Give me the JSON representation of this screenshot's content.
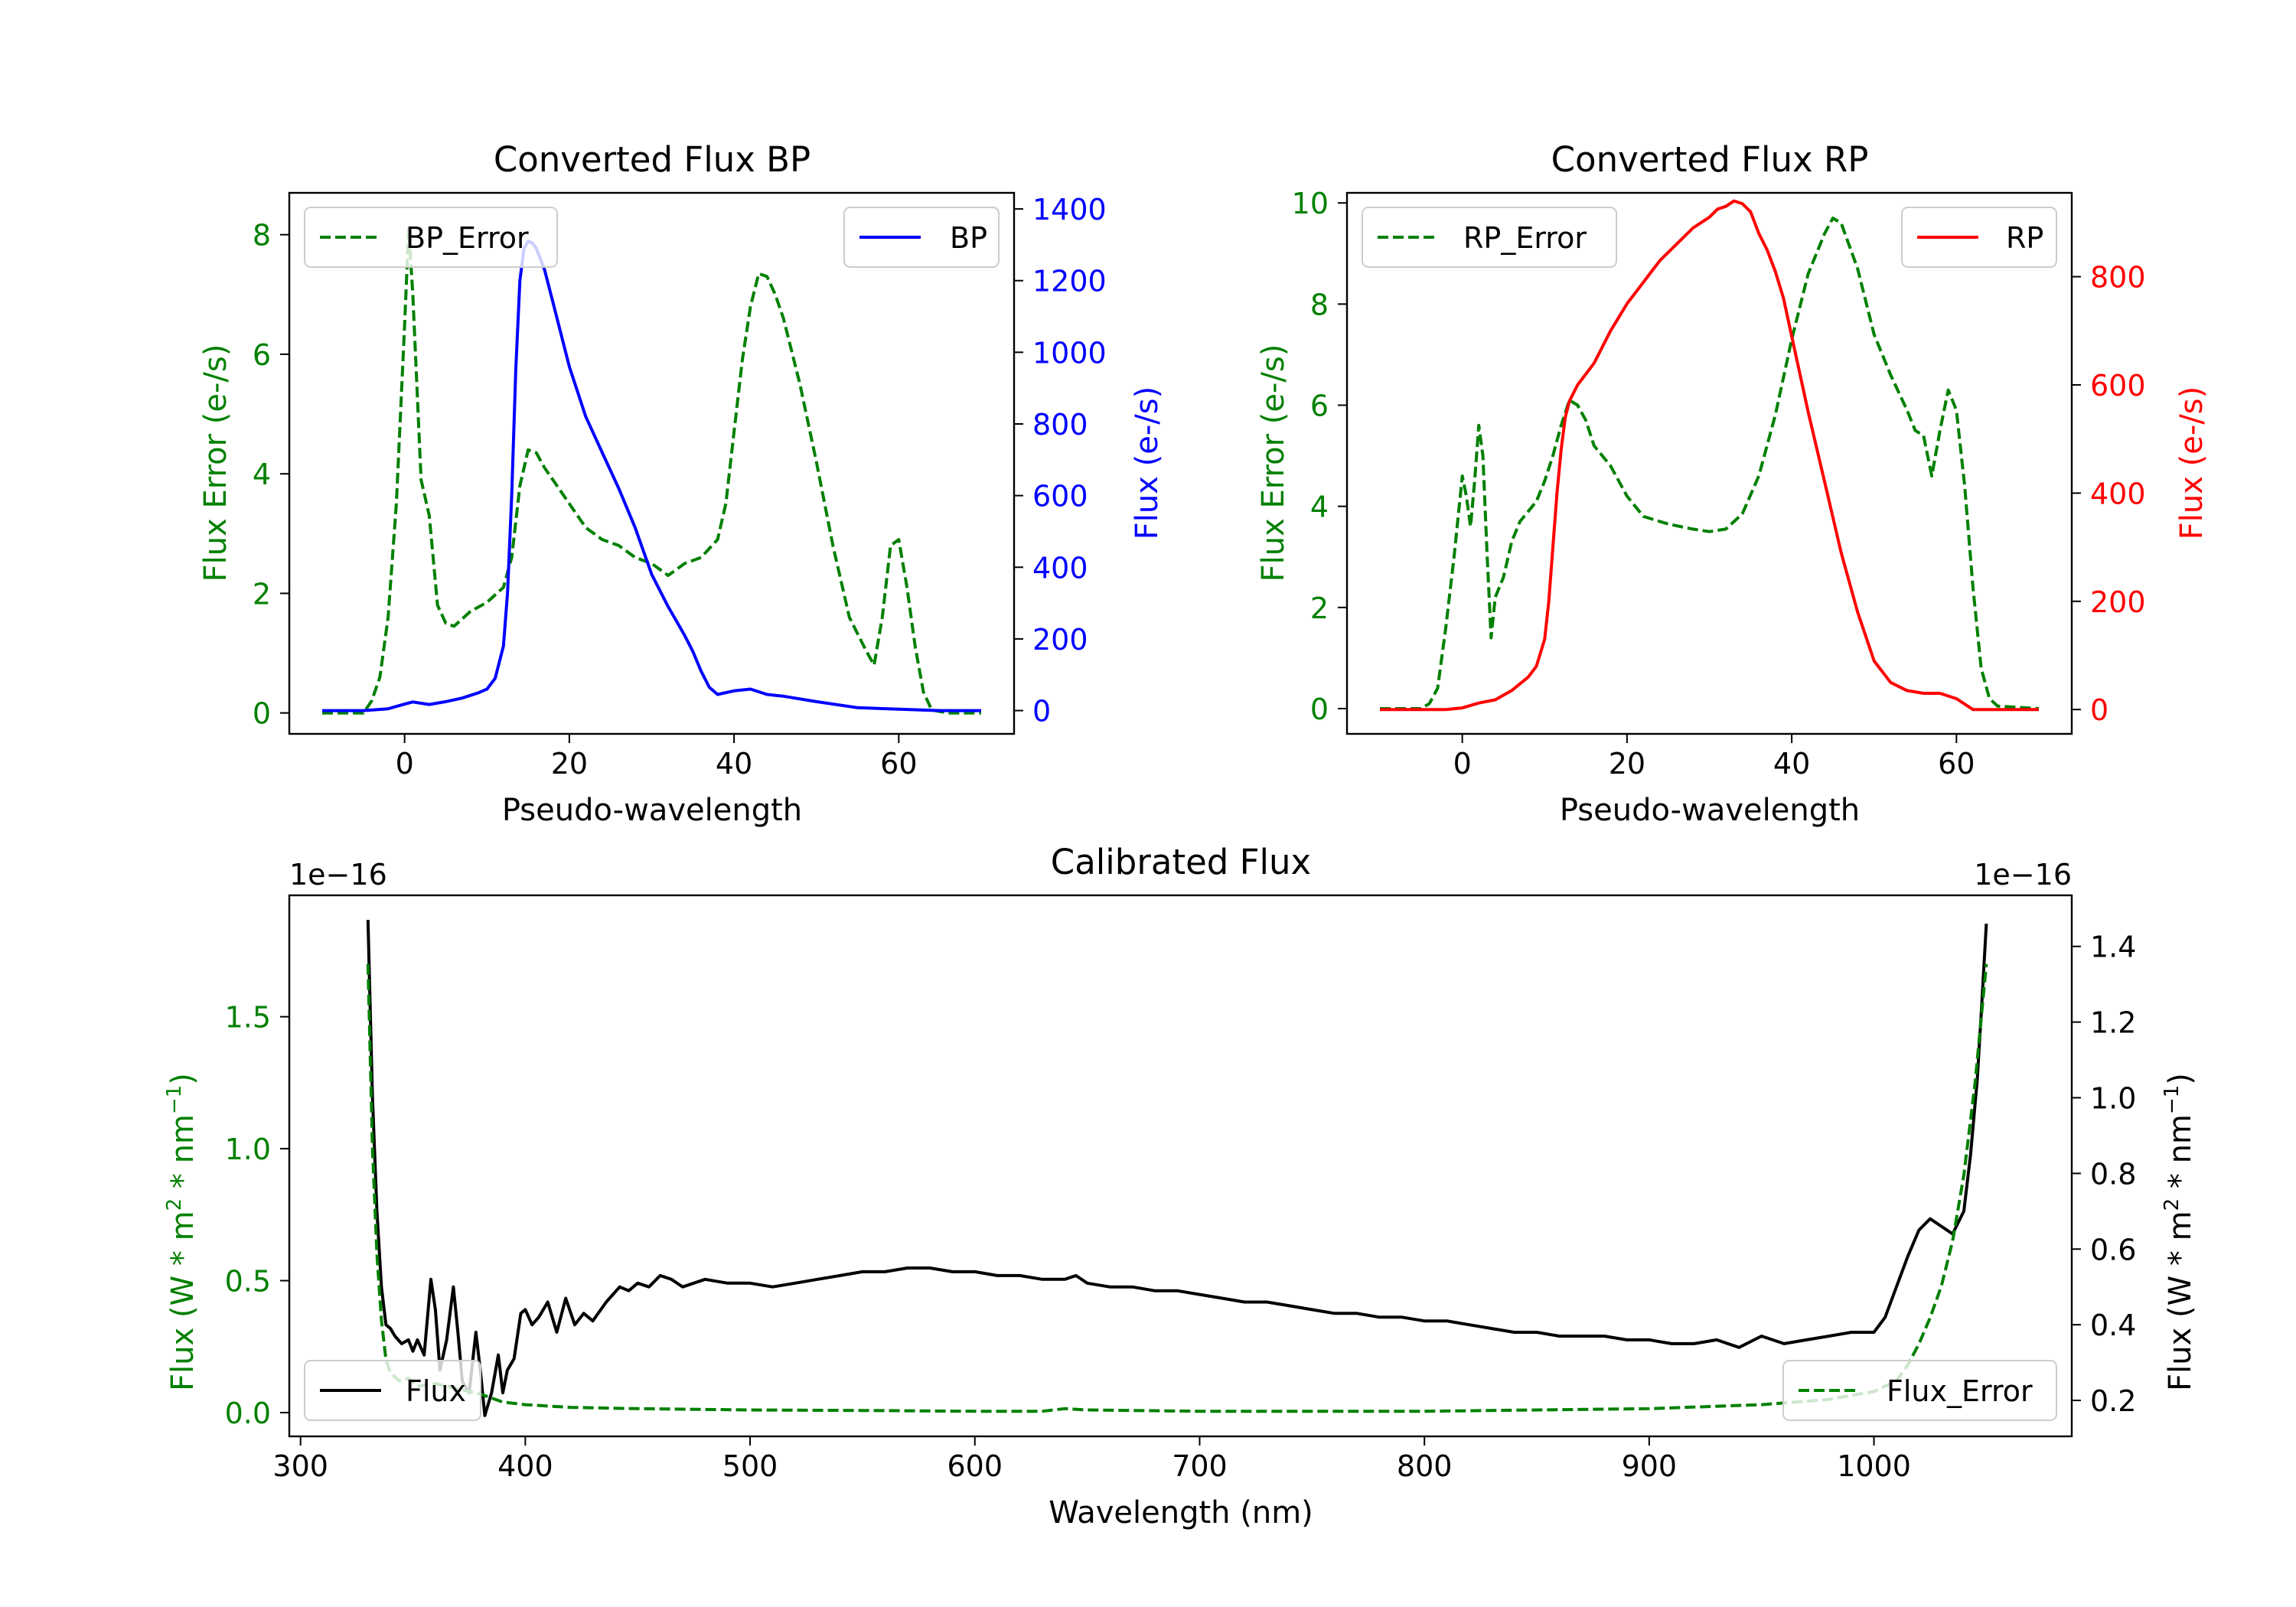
{
  "colors": {
    "green": "#008000",
    "blue": "#0000ff",
    "red": "#ff0000",
    "black": "#000000"
  },
  "chart_data": [
    {
      "id": "bp",
      "type": "line",
      "title": "Converted Flux BP",
      "xlabel": "Pseudo-wavelength",
      "xlim": [
        -14,
        74
      ],
      "xticks": [
        0,
        20,
        40,
        60
      ],
      "left": {
        "ylabel": "Flux Error (e-/s)",
        "color": "#008000",
        "ylim": [
          -0.35,
          8.7
        ],
        "ticks": [
          0,
          2,
          4,
          6,
          8
        ],
        "scale_label": ""
      },
      "right": {
        "ylabel": "Flux (e-/s)",
        "color": "#0000ff",
        "ylim": [
          -65,
          1445
        ],
        "ticks": [
          0,
          200,
          400,
          600,
          800,
          1000,
          1200,
          1400
        ],
        "scale_label": ""
      },
      "legend_left": "top-left",
      "legend_right": "top-right",
      "series": [
        {
          "name": "BP_Error",
          "axis": "left",
          "style": "dashed",
          "color": "#008000",
          "x": [
            -10,
            -5,
            -4,
            -3,
            -2,
            -1,
            0,
            0.5,
            1,
            2,
            3,
            4,
            5,
            6,
            8,
            10,
            12,
            13,
            14,
            15,
            16,
            17,
            18,
            20,
            22,
            24,
            26,
            28,
            30,
            32,
            34,
            36,
            38,
            39,
            40,
            41,
            42,
            43,
            44,
            45,
            46,
            48,
            50,
            52,
            54,
            56,
            57,
            58,
            59,
            60,
            61,
            62,
            63,
            64,
            66,
            68,
            70
          ],
          "y": [
            0.0,
            0.0,
            0.2,
            0.6,
            1.6,
            3.5,
            6.5,
            8.1,
            7.0,
            3.9,
            3.3,
            1.8,
            1.5,
            1.45,
            1.7,
            1.85,
            2.1,
            2.6,
            3.8,
            4.4,
            4.35,
            4.1,
            3.9,
            3.5,
            3.1,
            2.9,
            2.8,
            2.6,
            2.5,
            2.3,
            2.5,
            2.6,
            2.9,
            3.5,
            4.7,
            5.9,
            6.8,
            7.35,
            7.3,
            7.0,
            6.6,
            5.5,
            4.2,
            2.8,
            1.6,
            1.05,
            0.8,
            1.6,
            2.8,
            2.9,
            2.1,
            1.1,
            0.35,
            0.05,
            0.0,
            0.0,
            0.0
          ]
        },
        {
          "name": "BP",
          "axis": "right",
          "style": "solid",
          "color": "#0000ff",
          "x": [
            -10,
            -5,
            -2,
            0,
            1,
            3,
            5,
            7,
            9,
            10,
            11,
            12,
            12.5,
            13,
            13.5,
            14,
            14.5,
            15,
            15.5,
            16,
            17,
            18,
            20,
            22,
            24,
            26,
            28,
            30,
            32,
            33,
            34,
            35,
            36,
            37,
            38,
            40,
            42,
            44,
            46,
            50,
            55,
            60,
            65,
            70
          ],
          "y": [
            0,
            0,
            5,
            18,
            24,
            17,
            25,
            35,
            50,
            60,
            90,
            180,
            330,
            600,
            950,
            1200,
            1290,
            1310,
            1305,
            1290,
            1230,
            1140,
            960,
            820,
            720,
            620,
            510,
            380,
            290,
            250,
            210,
            165,
            110,
            65,
            45,
            55,
            60,
            45,
            40,
            25,
            8,
            4,
            0,
            0
          ]
        }
      ]
    },
    {
      "id": "rp",
      "type": "line",
      "title": "Converted Flux RP",
      "xlabel": "Pseudo-wavelength",
      "xlim": [
        -14,
        74
      ],
      "xticks": [
        0,
        20,
        40,
        60
      ],
      "left": {
        "ylabel": "Flux Error (e-/s)",
        "color": "#008000",
        "ylim": [
          -0.5,
          10.2
        ],
        "ticks": [
          0,
          2,
          4,
          6,
          8,
          10
        ],
        "scale_label": ""
      },
      "right": {
        "ylabel": "Flux (e-/s)",
        "color": "#ff0000",
        "ylim": [
          -45,
          955
        ],
        "ticks": [
          0,
          200,
          400,
          600,
          800
        ],
        "scale_label": ""
      },
      "legend_left": "top-left",
      "legend_right": "top-right",
      "series": [
        {
          "name": "RP_Error",
          "axis": "left",
          "style": "dashed",
          "color": "#008000",
          "x": [
            -10,
            -5,
            -4,
            -3,
            -2,
            -1,
            0,
            0.5,
            1,
            1.5,
            2,
            2.5,
            3,
            3.5,
            4,
            5,
            6,
            7,
            8,
            9,
            10,
            11,
            12,
            13,
            14,
            15,
            16,
            18,
            20,
            22,
            25,
            28,
            30,
            32,
            34,
            36,
            38,
            40,
            42,
            44,
            45,
            46,
            48,
            50,
            52,
            54,
            55,
            56,
            57,
            58,
            59,
            60,
            61,
            62,
            63,
            64,
            65,
            70
          ],
          "y": [
            0.0,
            0.0,
            0.1,
            0.4,
            1.6,
            3.0,
            4.6,
            4.2,
            3.6,
            4.5,
            5.6,
            5.0,
            3.1,
            1.4,
            2.2,
            2.6,
            3.3,
            3.7,
            3.9,
            4.1,
            4.5,
            5.0,
            5.6,
            6.1,
            6.0,
            5.7,
            5.2,
            4.8,
            4.2,
            3.8,
            3.65,
            3.55,
            3.5,
            3.55,
            3.85,
            4.6,
            5.8,
            7.3,
            8.6,
            9.4,
            9.7,
            9.6,
            8.7,
            7.4,
            6.6,
            5.9,
            5.5,
            5.4,
            4.6,
            5.5,
            6.3,
            5.9,
            4.4,
            2.4,
            0.8,
            0.2,
            0.05,
            0.0
          ]
        },
        {
          "name": "RP",
          "axis": "right",
          "style": "solid",
          "color": "#ff0000",
          "x": [
            -10,
            -5,
            -2,
            0,
            2,
            4,
            6,
            8,
            9,
            10,
            10.5,
            11,
            11.5,
            12,
            12.5,
            13,
            14,
            16,
            18,
            20,
            22,
            24,
            26,
            28,
            30,
            31,
            32,
            33,
            34,
            35,
            36,
            37,
            38,
            39,
            40,
            42,
            44,
            46,
            48,
            50,
            52,
            54,
            56,
            58,
            60,
            62,
            64,
            70
          ],
          "y": [
            0,
            0,
            0,
            3,
            12,
            18,
            35,
            60,
            80,
            130,
            200,
            300,
            400,
            480,
            540,
            570,
            600,
            640,
            700,
            750,
            790,
            830,
            860,
            890,
            910,
            925,
            930,
            940,
            935,
            920,
            880,
            850,
            810,
            760,
            690,
            550,
            420,
            290,
            180,
            90,
            50,
            35,
            30,
            30,
            20,
            0,
            0,
            0
          ]
        }
      ]
    },
    {
      "id": "calibrated",
      "type": "line",
      "title": "Calibrated Flux",
      "xlabel": "Wavelength (nm)",
      "xlim": [
        295,
        1088
      ],
      "xticks": [
        300,
        400,
        500,
        600,
        700,
        800,
        900,
        1000
      ],
      "left": {
        "ylabel": "Flux (W * m$^{2}$ * nm$^{-1}$)",
        "ylabel_parts": [
          "Flux (W * m",
          "2",
          " * nm",
          "−1",
          ")"
        ],
        "color": "#008000",
        "ylim": [
          -0.09,
          1.96
        ],
        "ticks": [
          0.0,
          0.5,
          1.0,
          1.5
        ],
        "tick_labels": [
          "0.0",
          "0.5",
          "1.0",
          "1.5"
        ],
        "scale_label": "1e−16"
      },
      "right": {
        "ylabel": "Flux (W * m$^{2}$ * nm$^{-1}$)",
        "ylabel_parts": [
          "Flux (W * m",
          "2",
          " * nm",
          "−1",
          ")"
        ],
        "color": "#000000",
        "ylim": [
          0.105,
          1.535
        ],
        "ticks": [
          0.2,
          0.4,
          0.6,
          0.8,
          1.0,
          1.2,
          1.4
        ],
        "tick_labels": [
          "0.2",
          "0.4",
          "0.6",
          "0.8",
          "1.0",
          "1.2",
          "1.4"
        ],
        "scale_label": "1e−16"
      },
      "legend_left": "bottom-left",
      "legend_right": "bottom-right",
      "series": [
        {
          "name": "Flux",
          "axis": "right",
          "style": "solid",
          "color": "#000000",
          "x": [
            330,
            332,
            334,
            336,
            338,
            340,
            342,
            345,
            348,
            350,
            352,
            355,
            358,
            360,
            362,
            365,
            368,
            370,
            372,
            375,
            378,
            380,
            382,
            385,
            388,
            390,
            392,
            395,
            398,
            400,
            403,
            406,
            410,
            414,
            418,
            422,
            426,
            430,
            436,
            442,
            446,
            450,
            455,
            460,
            465,
            470,
            480,
            490,
            500,
            510,
            520,
            530,
            540,
            550,
            560,
            570,
            580,
            590,
            600,
            610,
            620,
            630,
            640,
            645,
            650,
            660,
            670,
            680,
            690,
            700,
            710,
            720,
            730,
            740,
            750,
            760,
            770,
            780,
            790,
            800,
            810,
            820,
            830,
            840,
            850,
            860,
            870,
            880,
            890,
            900,
            910,
            920,
            930,
            940,
            950,
            960,
            970,
            980,
            990,
            1000,
            1005,
            1010,
            1015,
            1020,
            1025,
            1030,
            1035,
            1040,
            1043,
            1046,
            1048,
            1050
          ],
          "y": [
            1.47,
            1.0,
            0.7,
            0.5,
            0.4,
            0.39,
            0.37,
            0.35,
            0.36,
            0.33,
            0.36,
            0.32,
            0.52,
            0.44,
            0.28,
            0.36,
            0.5,
            0.38,
            0.25,
            0.22,
            0.38,
            0.28,
            0.16,
            0.22,
            0.32,
            0.22,
            0.28,
            0.31,
            0.43,
            0.44,
            0.4,
            0.42,
            0.46,
            0.38,
            0.47,
            0.4,
            0.43,
            0.41,
            0.46,
            0.5,
            0.49,
            0.51,
            0.5,
            0.53,
            0.52,
            0.5,
            0.52,
            0.51,
            0.51,
            0.5,
            0.51,
            0.52,
            0.53,
            0.54,
            0.54,
            0.55,
            0.55,
            0.54,
            0.54,
            0.53,
            0.53,
            0.52,
            0.52,
            0.53,
            0.51,
            0.5,
            0.5,
            0.49,
            0.49,
            0.48,
            0.47,
            0.46,
            0.46,
            0.45,
            0.44,
            0.43,
            0.43,
            0.42,
            0.42,
            0.41,
            0.41,
            0.4,
            0.39,
            0.38,
            0.38,
            0.37,
            0.37,
            0.37,
            0.36,
            0.36,
            0.35,
            0.35,
            0.36,
            0.34,
            0.37,
            0.35,
            0.36,
            0.37,
            0.38,
            0.38,
            0.42,
            0.5,
            0.58,
            0.65,
            0.68,
            0.66,
            0.64,
            0.7,
            0.85,
            1.05,
            1.25,
            1.46
          ]
        },
        {
          "name": "Flux_Error",
          "axis": "left",
          "style": "dashed",
          "color": "#008000",
          "x": [
            330,
            332,
            334,
            336,
            338,
            340,
            344,
            348,
            352,
            360,
            370,
            380,
            390,
            400,
            420,
            450,
            500,
            550,
            600,
            630,
            635,
            640,
            650,
            700,
            800,
            900,
            950,
            980,
            1000,
            1010,
            1015,
            1020,
            1025,
            1030,
            1035,
            1040,
            1045,
            1050
          ],
          "y": [
            1.7,
            1.0,
            0.6,
            0.35,
            0.2,
            0.15,
            0.12,
            0.13,
            0.1,
            0.11,
            0.09,
            0.07,
            0.04,
            0.03,
            0.02,
            0.015,
            0.01,
            0.008,
            0.005,
            0.005,
            0.01,
            0.015,
            0.01,
            0.005,
            0.005,
            0.015,
            0.03,
            0.05,
            0.08,
            0.12,
            0.18,
            0.26,
            0.36,
            0.48,
            0.65,
            0.9,
            1.25,
            1.7
          ]
        }
      ]
    }
  ]
}
